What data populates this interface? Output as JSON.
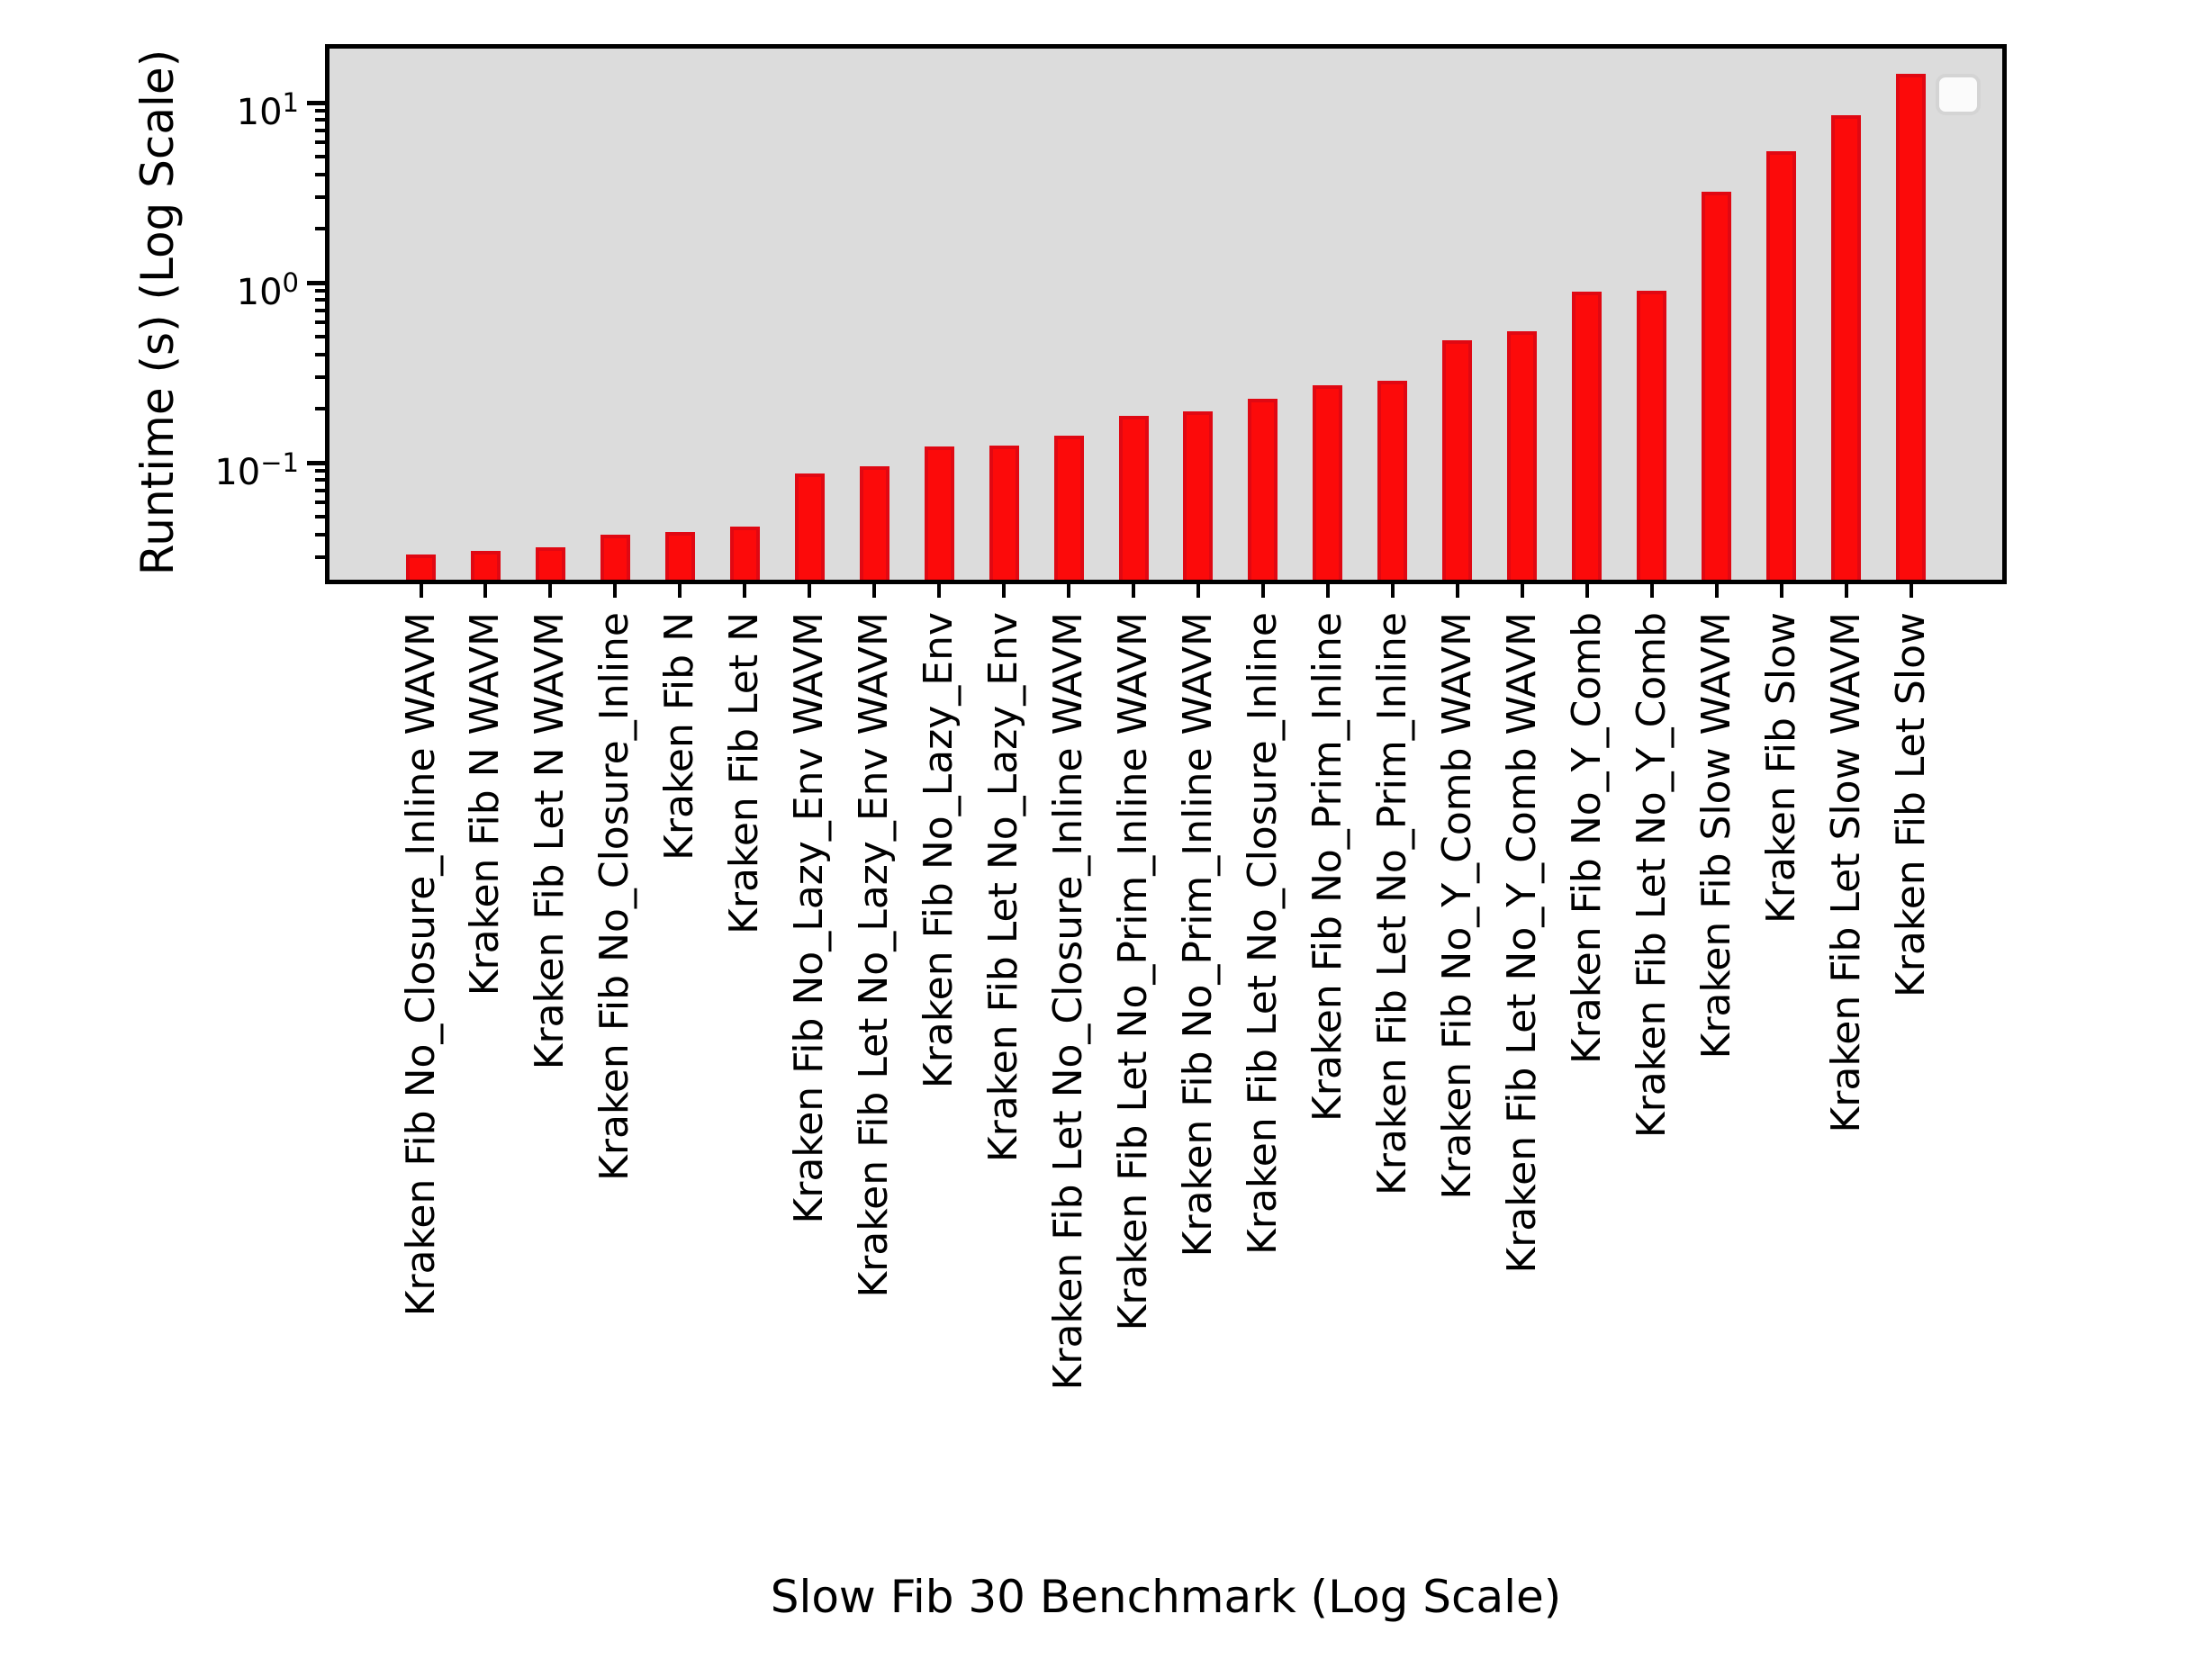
{
  "figure": {
    "background_color": "#ffffff",
    "plot_background_color": "#dcdcdc",
    "axis_color": "#000000",
    "bar_fill_color": "#fc0a0a",
    "bar_edge_color": "#e00812",
    "legend": {
      "present": true,
      "empty": true,
      "position": "upper-right"
    }
  },
  "chart_data": {
    "type": "bar",
    "title": "",
    "xlabel": "Slow Fib 30 Benchmark (Log Scale)",
    "ylabel": "Runtime (s) (Log Scale)",
    "yscale": "log",
    "ylim": [
      0.022,
      20
    ],
    "grid": false,
    "legend_position": "upper right (empty box, no entries)",
    "bar_color": "#fc0a0a",
    "categories": [
      "Kraken Fib No_Closure_Inline WAVM",
      "Kraken Fib N WAVM",
      "Kraken Fib Let N WAVM",
      "Kraken Fib No_Closure_Inline",
      "Kraken Fib N",
      "Kraken Fib Let N",
      "Kraken Fib No_Lazy_Env WAVM",
      "Kraken Fib Let No_Lazy_Env WAVM",
      "Kraken Fib No_Lazy_Env",
      "Kraken Fib Let No_Lazy_Env",
      "Kraken Fib Let No_Closure_Inline WAVM",
      "Kraken Fib Let No_Prim_Inline WAVM",
      "Kraken Fib No_Prim_Inline WAVM",
      "Kraken Fib Let No_Closure_Inline",
      "Kraken Fib No_Prim_Inline",
      "Kraken Fib Let No_Prim_Inline",
      "Kraken Fib No_Y_Comb WAVM",
      "Kraken Fib Let No_Y_Comb WAVM",
      "Kraken Fib No_Y_Comb",
      "Kraken Fib Let No_Y_Comb",
      "Kraken Fib Slow WAVM",
      "Kraken Fib Slow",
      "Kraken Fib Let Slow WAVM",
      "Kraken Fib Let Slow"
    ],
    "values": [
      0.031,
      0.0325,
      0.034,
      0.04,
      0.041,
      0.044,
      0.087,
      0.095,
      0.123,
      0.125,
      0.142,
      0.181,
      0.192,
      0.226,
      0.27,
      0.285,
      0.48,
      0.54,
      0.89,
      0.9,
      3.2,
      5.4,
      8.5,
      14.5
    ],
    "yticks": [
      {
        "display": "10^1",
        "value": 10
      },
      {
        "display": "10^0",
        "value": 1
      },
      {
        "display": "10^-1",
        "value": 0.1
      }
    ],
    "yminorticks": [
      0.03,
      0.04,
      0.05,
      0.06,
      0.07,
      0.08,
      0.09,
      0.2,
      0.3,
      0.4,
      0.5,
      0.6,
      0.7,
      0.8,
      0.9,
      2,
      3,
      4,
      5,
      6,
      7,
      8,
      9
    ]
  }
}
